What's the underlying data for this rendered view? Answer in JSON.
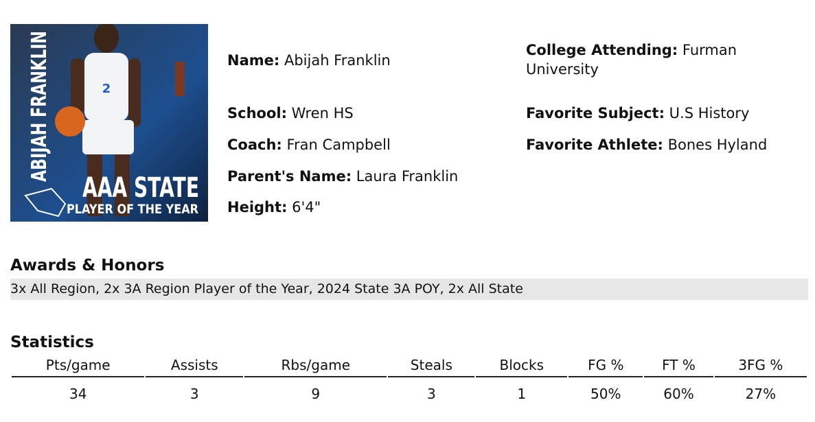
{
  "photo": {
    "name_text": "ABIJAH FRANKLIN",
    "headline": "AAA STATE",
    "subline": "PLAYER OF THE YEAR"
  },
  "profile": {
    "left": [
      {
        "label": "Name:",
        "value": "Abijah Franklin"
      },
      {
        "label": "School:",
        "value": "Wren HS"
      },
      {
        "label": "Coach:",
        "value": "Fran Campbell"
      },
      {
        "label": "Parent's Name:",
        "value": "Laura Franklin"
      },
      {
        "label": "Height:",
        "value": "6'4\""
      }
    ],
    "right": [
      {
        "label": "College Attending:",
        "value": "Furman University"
      },
      {
        "label": "Favorite Subject:",
        "value": "U.S History"
      },
      {
        "label": "Favorite Athlete:",
        "value": "Bones Hyland"
      }
    ]
  },
  "awards": {
    "title": "Awards & Honors",
    "text": "3x All Region, 2x 3A Region Player of the Year, 2024 State 3A POY, 2x All State"
  },
  "statistics": {
    "title": "Statistics",
    "headers": [
      "Pts/game",
      "Assists",
      "Rbs/game",
      "Steals",
      "Blocks",
      "FG %",
      "FT %",
      "3FG %"
    ],
    "values": [
      "34",
      "3",
      "9",
      "3",
      "1",
      "50%",
      "60%",
      "27%"
    ]
  }
}
